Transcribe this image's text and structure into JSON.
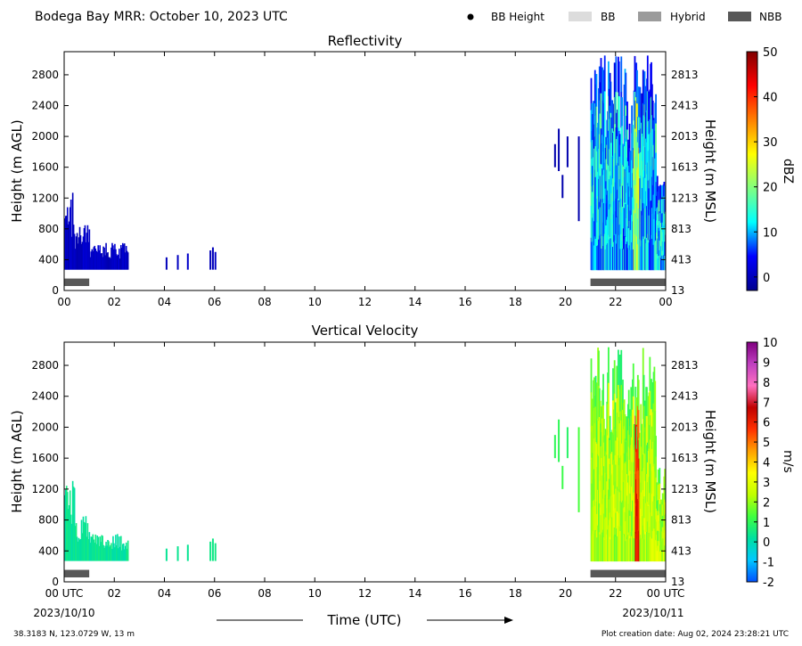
{
  "header": {
    "title": "Bodega Bay MRR:  October 10, 2023 UTC",
    "legend": [
      {
        "label": "BB Height",
        "marker": "dot",
        "color": "#000000"
      },
      {
        "label": "BB",
        "marker": "rect",
        "color": "#dcdcdc"
      },
      {
        "label": "Hybrid",
        "marker": "rect",
        "color": "#9b9b9b"
      },
      {
        "label": "NBB",
        "marker": "rect",
        "color": "#585858"
      }
    ]
  },
  "footer": {
    "location": "38.3183 N, 123.0729 W, 13 m",
    "creation": "Plot creation date: Aug 02, 2024 23:28:21 UTC",
    "xlabel": "Time (UTC)",
    "start_date": "2023/10/10",
    "end_date": "2023/10/11"
  },
  "chart_data": [
    {
      "type": "heatmap",
      "title": "Reflectivity",
      "ylabel": "Height (m AGL)",
      "ylabel_right": "Height (m MSL)",
      "ylim": [
        0,
        3100
      ],
      "xlim": [
        0,
        24
      ],
      "x_ticks": [
        "00",
        "02",
        "04",
        "06",
        "08",
        "10",
        "12",
        "14",
        "16",
        "18",
        "20",
        "22",
        "00"
      ],
      "y_ticks": [
        0,
        400,
        800,
        1200,
        1600,
        2000,
        2400,
        2800
      ],
      "y_ticks_right": [
        13,
        413,
        813,
        1213,
        1613,
        2013,
        2413,
        2813
      ],
      "colorbar": {
        "label": "dBZ",
        "range": [
          -3,
          50
        ],
        "ticks": [
          0,
          10,
          20,
          30,
          40,
          50
        ],
        "stops": [
          "#00008f",
          "#0000ff",
          "#00ffff",
          "#80ff80",
          "#ffff00",
          "#ff8000",
          "#ff0000",
          "#800000"
        ]
      },
      "bb_type_segments": [
        {
          "start": 0.0,
          "end": 1.0,
          "type": "NBB"
        },
        {
          "start": 21.0,
          "end": 24.0,
          "type": "NBB"
        }
      ]
    },
    {
      "type": "heatmap",
      "title": "Vertical Velocity",
      "ylabel": "Height (m AGL)",
      "ylabel_right": "Height (m MSL)",
      "ylim": [
        0,
        3100
      ],
      "xlim": [
        0,
        24
      ],
      "x_ticks": [
        "00 UTC",
        "02",
        "04",
        "06",
        "08",
        "10",
        "12",
        "14",
        "16",
        "18",
        "20",
        "22",
        "00 UTC"
      ],
      "y_ticks": [
        0,
        400,
        800,
        1200,
        1600,
        2000,
        2400,
        2800
      ],
      "y_ticks_right": [
        13,
        413,
        813,
        1213,
        1613,
        2013,
        2413,
        2813
      ],
      "colorbar": {
        "label": "m/s",
        "range": [
          -2,
          10
        ],
        "ticks": [
          -2,
          -1,
          0,
          1,
          2,
          3,
          4,
          5,
          6,
          7,
          8,
          9,
          10
        ],
        "stops": [
          "#0050ff",
          "#00c8ff",
          "#00e0a0",
          "#40ff40",
          "#c0ff00",
          "#ffff00",
          "#ffa000",
          "#ff3000",
          "#c00000",
          "#ff70c0",
          "#c040c0",
          "#800080"
        ]
      },
      "bb_type_segments": [
        {
          "start": 0.0,
          "end": 1.0,
          "type": "NBB"
        },
        {
          "start": 21.0,
          "end": 24.0,
          "type": "NBB"
        }
      ]
    }
  ]
}
